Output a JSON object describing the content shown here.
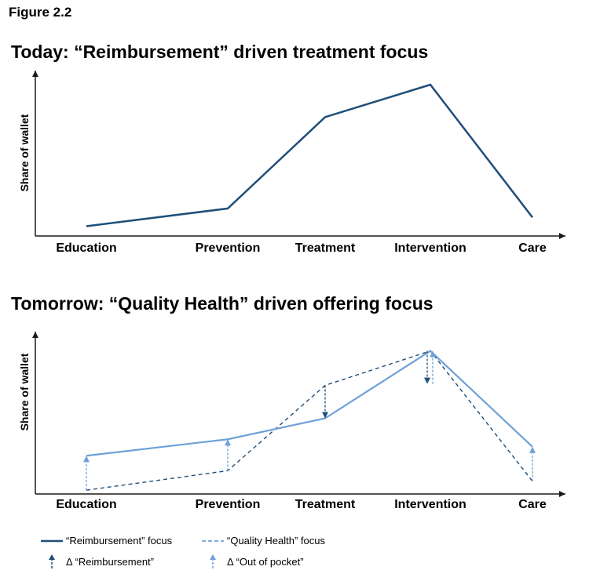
{
  "figure_label": "Figure 2.2",
  "colors": {
    "reimbursement": "#1f4e79",
    "quality": "#6fa0d8",
    "axis": "#1a1a1a"
  },
  "chart_data": [
    {
      "type": "line",
      "title": "Today: “Reimbursement” driven treatment focus",
      "ylabel": "Share of wallet",
      "xlabel": "",
      "categories": [
        "Education",
        "Prevention",
        "Treatment",
        "Intervention",
        "Care"
      ],
      "y_ticks_shown": false,
      "ylim": [
        0,
        100
      ],
      "series": [
        {
          "key": "reimbursement",
          "style": "solid",
          "values": [
            4,
            16,
            78,
            100,
            10
          ]
        }
      ]
    },
    {
      "type": "line",
      "title": "Tomorrow: “Quality Health” driven offering focus",
      "ylabel": "Share of wallet",
      "xlabel": "",
      "categories": [
        "Education",
        "Prevention",
        "Treatment",
        "Intervention",
        "Care"
      ],
      "y_ticks_shown": false,
      "ylim": [
        0,
        100
      ],
      "series": [
        {
          "key": "reimbursement",
          "style": "dashed",
          "values": [
            2,
            15,
            72,
            95,
            8
          ]
        },
        {
          "key": "quality",
          "style": "solid",
          "values": [
            25,
            36,
            50,
            95,
            31
          ]
        }
      ],
      "annotations": [
        {
          "category": "Education",
          "kind": "out_of_pocket",
          "from": 2,
          "to": 25
        },
        {
          "category": "Prevention",
          "kind": "out_of_pocket",
          "from": 15,
          "to": 36
        },
        {
          "category": "Treatment",
          "kind": "reimbursement",
          "from": 72,
          "to": 50
        },
        {
          "category": "Intervention",
          "kind": "reimbursement",
          "from": 95,
          "to": 73
        },
        {
          "category": "Intervention",
          "kind": "out_of_pocket",
          "from": 73,
          "to": 95
        },
        {
          "category": "Care",
          "kind": "out_of_pocket",
          "from": 8,
          "to": 31
        }
      ]
    }
  ],
  "legend": {
    "reimbursement_focus": "“Reimbursement” focus",
    "quality_focus": "“Quality Health” focus",
    "delta_reimbursement": "Δ “Reimbursement”",
    "delta_out_of_pocket": "Δ “Out of pocket”"
  }
}
